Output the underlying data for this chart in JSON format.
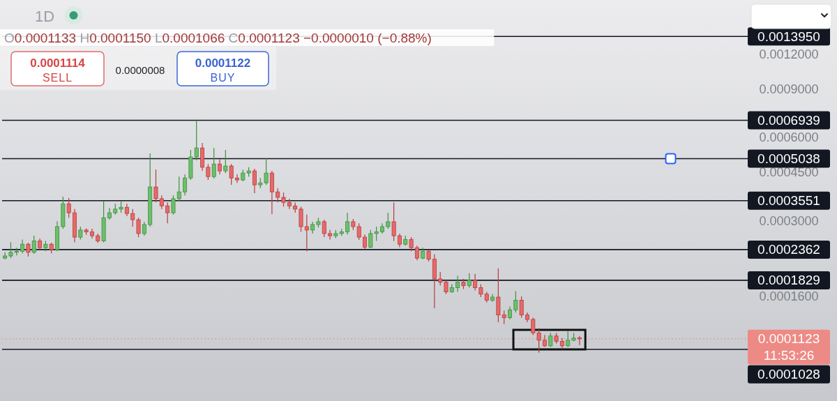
{
  "chart_data": {
    "type": "candlestick",
    "title": "1D",
    "subtitle": "O0.0001133 H0.0001150 L0.0001066 C0.0001123 −0.0000010 (−0.88%)",
    "categories": [
      null,
      null,
      null,
      null,
      null,
      null,
      null,
      null,
      null,
      null,
      null,
      null,
      null,
      null,
      null,
      null,
      null,
      null,
      null,
      null,
      null,
      null,
      null,
      null,
      null,
      null,
      null,
      null,
      null,
      null,
      null,
      null,
      null,
      null,
      null,
      null,
      null,
      null,
      null,
      null,
      null,
      null,
      null,
      null,
      null,
      null,
      null,
      null,
      null,
      null,
      null,
      null,
      null,
      null,
      null,
      null,
      null,
      null,
      null,
      null,
      null,
      null,
      null,
      null,
      null,
      null,
      null,
      null,
      null,
      null,
      null,
      null,
      null,
      null,
      null,
      null,
      null,
      null,
      null,
      null,
      null,
      null,
      null,
      null,
      null,
      null,
      null,
      null,
      null,
      null,
      null,
      null,
      null,
      null,
      null,
      null,
      null,
      null,
      null,
      null,
      null,
      null,
      null,
      null,
      null,
      null,
      null,
      null,
      null,
      null,
      null,
      null,
      null,
      null,
      null,
      null,
      null,
      null,
      null,
      null,
      null,
      null,
      null,
      null,
      null,
      null,
      null,
      null
    ],
    "ohlc": [
      [
        0.00022,
        0.000231,
        0.000218,
        0.000224
      ],
      [
        0.000224,
        0.000251,
        0.00022,
        0.000231
      ],
      [
        0.000231,
        0.00024,
        0.000225,
        0.000233
      ],
      [
        0.000233,
        0.000257,
        0.000229,
        0.000247
      ],
      [
        0.000247,
        0.00025,
        0.000223,
        0.000231
      ],
      [
        0.000231,
        0.000265,
        0.000228,
        0.000254
      ],
      [
        0.000254,
        0.000259,
        0.000236,
        0.00024
      ],
      [
        0.00024,
        0.000254,
        0.000233,
        0.000247
      ],
      [
        0.000247,
        0.00025,
        0.000229,
        0.000236
      ],
      [
        0.000236,
        0.000299,
        0.000233,
        0.000286
      ],
      [
        0.000286,
        0.000367,
        0.000281,
        0.000346
      ],
      [
        0.000346,
        0.000363,
        0.000308,
        0.000321
      ],
      [
        0.000321,
        0.000331,
        0.000251,
        0.000262
      ],
      [
        0.000262,
        0.000286,
        0.000257,
        0.000278
      ],
      [
        0.000278,
        0.000282,
        0.000267,
        0.000274
      ],
      [
        0.000274,
        0.000281,
        0.000259,
        0.000265
      ],
      [
        0.000265,
        0.00027,
        0.00025,
        0.000254
      ],
      [
        0.000254,
        0.000354,
        0.000251,
        0.000308
      ],
      [
        0.000308,
        0.000334,
        0.000303,
        0.000321
      ],
      [
        0.000321,
        0.000346,
        0.000316,
        0.000331
      ],
      [
        0.000331,
        0.000354,
        0.000321,
        0.000336
      ],
      [
        0.000336,
        0.000346,
        0.000312,
        0.000319
      ],
      [
        0.000319,
        0.000331,
        0.000286,
        0.000303
      ],
      [
        0.000303,
        0.000308,
        0.000262,
        0.00027
      ],
      [
        0.00027,
        0.000298,
        0.000265,
        0.000291
      ],
      [
        0.000291,
        0.000526,
        0.000286,
        0.000398
      ],
      [
        0.000398,
        0.00046,
        0.00035,
        0.000361
      ],
      [
        0.000361,
        0.000371,
        0.000331,
        0.00034
      ],
      [
        0.00034,
        0.00035,
        0.000294,
        0.000321
      ],
      [
        0.000321,
        0.000371,
        0.000316,
        0.000361
      ],
      [
        0.000361,
        0.000434,
        0.000354,
        0.000382
      ],
      [
        0.000382,
        0.000442,
        0.000371,
        0.000429
      ],
      [
        0.000429,
        0.000542,
        0.000422,
        0.000511
      ],
      [
        0.000511,
        0.000694,
        0.000497,
        0.000551
      ],
      [
        0.000551,
        0.000574,
        0.000455,
        0.000469
      ],
      [
        0.000469,
        0.000482,
        0.000422,
        0.000434
      ],
      [
        0.000434,
        0.000551,
        0.000427,
        0.000482
      ],
      [
        0.000482,
        0.000502,
        0.000442,
        0.000455
      ],
      [
        0.000455,
        0.000542,
        0.000447,
        0.000474
      ],
      [
        0.000474,
        0.000482,
        0.000405,
        0.000429
      ],
      [
        0.000429,
        0.000442,
        0.000412,
        0.000422
      ],
      [
        0.000422,
        0.00046,
        0.000417,
        0.000447
      ],
      [
        0.000447,
        0.000469,
        0.000434,
        0.000455
      ],
      [
        0.000455,
        0.000463,
        0.000378,
        0.000405
      ],
      [
        0.000405,
        0.000429,
        0.000394,
        0.000412
      ],
      [
        0.000412,
        0.000505,
        0.000405,
        0.000447
      ],
      [
        0.000447,
        0.000455,
        0.000317,
        0.000382
      ],
      [
        0.000382,
        0.000394,
        0.00035,
        0.000365
      ],
      [
        0.000365,
        0.00038,
        0.000338,
        0.00035
      ],
      [
        0.00035,
        0.000361,
        0.000331,
        0.00034
      ],
      [
        0.00034,
        0.00035,
        0.000321,
        0.000331
      ],
      [
        0.000331,
        0.000338,
        0.000274,
        0.000286
      ],
      [
        0.000286,
        0.000316,
        0.000233,
        0.000278
      ],
      [
        0.000278,
        0.000298,
        0.00027,
        0.000291
      ],
      [
        0.000291,
        0.000308,
        0.000284,
        0.000298
      ],
      [
        0.000298,
        0.000303,
        0.000262,
        0.00027
      ],
      [
        0.00027,
        0.000278,
        0.000257,
        0.000265
      ],
      [
        0.000265,
        0.000278,
        0.00026,
        0.00027
      ],
      [
        0.00027,
        0.000281,
        0.000265,
        0.000274
      ],
      [
        0.000274,
        0.000321,
        0.000268,
        0.000298
      ],
      [
        0.000298,
        0.000305,
        0.000278,
        0.000286
      ],
      [
        0.000286,
        0.000294,
        0.000256,
        0.000262
      ],
      [
        0.000262,
        0.000268,
        0.000237,
        0.000241
      ],
      [
        0.000241,
        0.000278,
        0.000239,
        0.00027
      ],
      [
        0.00027,
        0.000286,
        0.000254,
        0.000274
      ],
      [
        0.000274,
        0.000294,
        0.00027,
        0.000286
      ],
      [
        0.000286,
        0.000321,
        0.000281,
        0.000298
      ],
      [
        0.000298,
        0.00035,
        0.000254,
        0.000265
      ],
      [
        0.000265,
        0.00027,
        0.000241,
        0.000247
      ],
      [
        0.000247,
        0.000265,
        0.000244,
        0.000257
      ],
      [
        0.000257,
        0.000262,
        0.000233,
        0.00024
      ],
      [
        0.00024,
        0.000244,
        0.000216,
        0.00022
      ],
      [
        0.00022,
        0.00024,
        0.000218,
        0.000233
      ],
      [
        0.000233,
        0.000236,
        0.000214,
        0.000218
      ],
      [
        0.000218,
        0.000227,
        0.000145,
        0.000185
      ],
      [
        0.000185,
        0.000196,
        0.000175,
        0.00018
      ],
      [
        0.00018,
        0.000183,
        0.000163,
        0.000166
      ],
      [
        0.000166,
        0.000177,
        0.000165,
        0.000172
      ],
      [
        0.000172,
        0.00019,
        0.000166,
        0.00018
      ],
      [
        0.00018,
        0.000185,
        0.00017,
        0.000175
      ],
      [
        0.000175,
        0.000194,
        0.000172,
        0.000183
      ],
      [
        0.000183,
        0.000193,
        0.000168,
        0.000172
      ],
      [
        0.000172,
        0.000177,
        0.000159,
        0.000163
      ],
      [
        0.000163,
        0.000166,
        0.000152,
        0.000155
      ],
      [
        0.000155,
        0.000163,
        0.000153,
        0.000159
      ],
      [
        0.000159,
        0.000202,
        0.000129,
        0.000137
      ],
      [
        0.000137,
        0.000142,
        0.000127,
        0.000134
      ],
      [
        0.000134,
        0.000147,
        0.000132,
        0.000143
      ],
      [
        0.000143,
        0.000167,
        0.00014,
        0.000155
      ],
      [
        0.000155,
        0.00016,
        0.000134,
        0.000137
      ],
      [
        0.000137,
        0.00014,
        0.000129,
        0.000132
      ],
      [
        0.000132,
        0.000134,
        0.000116,
        0.000118
      ],
      [
        0.000118,
        0.000123,
        0.0001,
        0.000111
      ],
      [
        0.000111,
        0.000116,
        0.000105,
        0.000106
      ],
      [
        0.000106,
        0.000118,
        0.000105,
        0.000115
      ],
      [
        0.000115,
        0.000118,
        0.000108,
        0.00011
      ],
      [
        0.00011,
        0.000113,
        0.000103,
        0.000106
      ],
      [
        0.000106,
        0.00012,
        0.000105,
        0.000111
      ],
      [
        0.000111,
        0.000118,
        0.00011,
        0.000113
      ],
      [
        0.0001133,
        0.000115,
        0.0001066,
        0.0001123
      ],
      null,
      null,
      null,
      null,
      null,
      null,
      null,
      null,
      null,
      null,
      null,
      null,
      null,
      null,
      null,
      null,
      null,
      null,
      null,
      null,
      null,
      null,
      null,
      null,
      null,
      null,
      null,
      null
    ],
    "log": true,
    "ylim": [
      6.69e-05,
      0.00189
    ],
    "yticks": [
      {
        "value": 0.0012,
        "label": "0.0012000"
      },
      {
        "value": 0.0009,
        "label": "0.0009000"
      },
      {
        "value": 0.0006,
        "label": "0.0006000"
      },
      {
        "value": 0.00045,
        "label": "0.0004500"
      },
      {
        "value": 0.0003,
        "label": "0.0003000"
      },
      {
        "value": 0.00016,
        "label": "0.0001600"
      }
    ],
    "tick_labels": "y",
    "ref_lines": [
      {
        "axis": "y",
        "value": 0.001395,
        "label": "0.0013950",
        "color": "#131722"
      },
      {
        "axis": "y",
        "value": 0.0006939,
        "label": "0.0006939",
        "color": "#131722"
      },
      {
        "axis": "y",
        "value": 0.0005038,
        "label": "0.0005038",
        "color": "#131722"
      },
      {
        "axis": "y",
        "value": 0.0003551,
        "label": "0.0003551",
        "color": "#131722"
      },
      {
        "axis": "y",
        "value": 0.0002362,
        "label": "0.0002362",
        "color": "#131722"
      },
      {
        "axis": "y",
        "value": 0.0001829,
        "label": "0.0001829",
        "color": "#131722"
      },
      {
        "axis": "y",
        "value": 0.0001123,
        "label": "0.0001123",
        "color": "#ee8a85",
        "line_style": "dotted"
      },
      {
        "axis": "y",
        "value": 0.0001028,
        "label": "0.0001028",
        "color": "#131722"
      }
    ],
    "annotations": [
      "0.0001114",
      "SELL",
      "0.0000008",
      "0.0001122",
      "BUY",
      "11:53:26"
    ]
  }
}
